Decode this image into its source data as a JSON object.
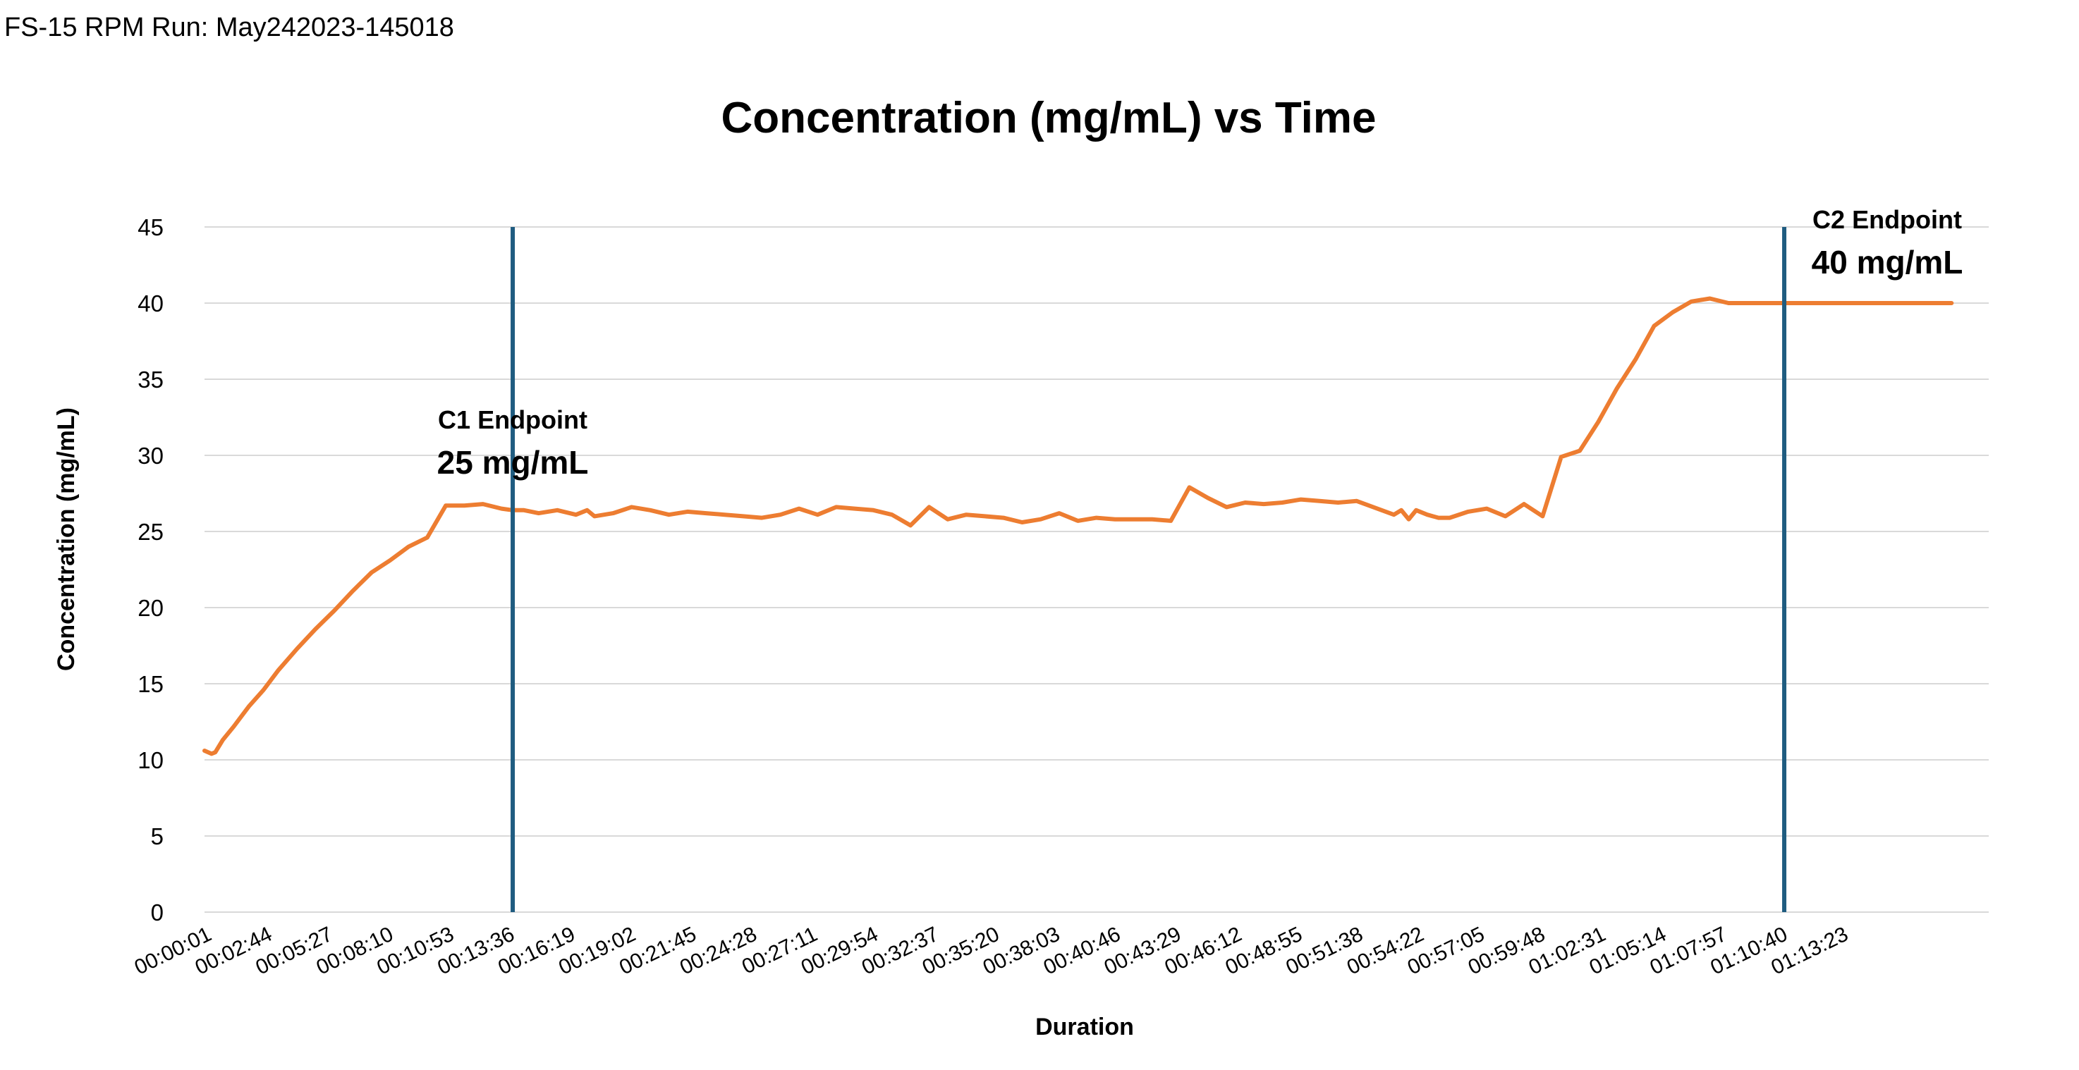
{
  "header": {
    "run_label": "FS-15 RPM Run: May242023-145018"
  },
  "chart_data": {
    "type": "line",
    "title": "Concentration (mg/mL) vs Time",
    "xlabel": "Duration",
    "ylabel": "Concentration (mg/mL)",
    "ylim": [
      0,
      45
    ],
    "yticks": [
      0,
      5,
      10,
      15,
      20,
      25,
      30,
      35,
      40,
      45
    ],
    "xlim_seconds": [
      1,
      4800
    ],
    "x_tick_labels": [
      "00:00:01",
      "00:02:44",
      "00:05:27",
      "00:08:10",
      "00:10:53",
      "00:13:36",
      "00:16:19",
      "00:19:02",
      "00:21:45",
      "00:24:28",
      "00:27:11",
      "00:29:54",
      "00:32:37",
      "00:35:20",
      "00:38:03",
      "00:40:46",
      "00:43:29",
      "00:46:12",
      "00:48:55",
      "00:51:38",
      "00:54:22",
      "00:57:05",
      "00:59:48",
      "01:02:31",
      "01:05:14",
      "01:07:57",
      "01:10:40",
      "01:13:23"
    ],
    "x_tick_seconds": [
      1,
      164,
      327,
      490,
      653,
      816,
      979,
      1142,
      1305,
      1468,
      1631,
      1794,
      1957,
      2120,
      2283,
      2446,
      2609,
      2772,
      2935,
      3098,
      3262,
      3425,
      3588,
      3751,
      3914,
      4077,
      4240,
      4403
    ],
    "grid": true,
    "line_color": "#ED7D31",
    "marker_line_color": "#1F5C80",
    "series": [
      {
        "x": [
          1,
          20,
          30,
          50,
          80,
          120,
          160,
          200,
          250,
          300,
          350,
          400,
          450,
          500,
          550,
          600,
          650,
          700,
          750,
          800,
          830,
          860,
          880,
          900,
          950,
          1000,
          1030,
          1050,
          1100,
          1150,
          1200,
          1250,
          1300,
          1350,
          1400,
          1450,
          1500,
          1550,
          1600,
          1650,
          1700,
          1750,
          1800,
          1850,
          1900,
          1950,
          2000,
          2050,
          2100,
          2150,
          2200,
          2250,
          2300,
          2350,
          2400,
          2450,
          2500,
          2550,
          2600,
          2650,
          2700,
          2750,
          2800,
          2850,
          2900,
          2950,
          3000,
          3050,
          3100,
          3200,
          3220,
          3240,
          3260,
          3290,
          3320,
          3350,
          3400,
          3450,
          3500,
          3550,
          3600,
          3650,
          3700,
          3750,
          3800,
          3850,
          3900,
          3950,
          4000,
          4050,
          4100,
          4150,
          4200,
          4230,
          4250,
          4270,
          4290,
          4320,
          4360,
          4400,
          4450,
          4500,
          4560,
          4620,
          4660,
          4700
        ],
        "y": [
          10.6,
          10.4,
          10.5,
          11.3,
          12.2,
          13.5,
          14.6,
          15.9,
          17.3,
          18.6,
          19.8,
          21.1,
          22.3,
          23.1,
          24.0,
          24.6,
          26.7,
          26.7,
          26.8,
          26.5,
          26.4,
          26.4,
          26.3,
          26.2,
          26.4,
          26.1,
          26.4,
          26.0,
          26.2,
          26.6,
          26.4,
          26.1,
          26.3,
          26.2,
          26.1,
          26.0,
          25.9,
          26.1,
          26.5,
          26.1,
          26.6,
          26.5,
          26.4,
          26.1,
          25.4,
          26.6,
          25.8,
          26.1,
          26.0,
          25.9,
          25.6,
          25.8,
          26.2,
          25.7,
          25.9,
          25.8,
          25.8,
          25.8,
          25.7,
          27.9,
          27.2,
          26.6,
          26.9,
          26.8,
          26.9,
          27.1,
          27.0,
          26.9,
          27.0,
          26.1,
          26.4,
          25.8,
          26.4,
          26.1,
          25.9,
          25.9,
          26.3,
          26.5,
          26.0,
          26.8,
          26.0,
          29.9,
          30.3,
          32.2,
          34.4,
          36.3,
          38.5,
          39.4,
          40.1,
          40.3,
          40.0,
          40.0,
          40.0,
          40.0,
          40.0,
          40.0,
          40.0,
          40.0,
          40.0,
          40.0,
          40.0,
          40.0,
          40.0,
          40.0,
          40.0,
          40.0
        ]
      }
    ],
    "annotations": [
      {
        "name": "c1",
        "label": "C1 Endpoint",
        "value": "25 mg/mL",
        "x_seconds": 830
      },
      {
        "name": "c2",
        "label": "C2 Endpoint",
        "value": "40 mg/mL",
        "x_seconds": 4250
      }
    ]
  }
}
